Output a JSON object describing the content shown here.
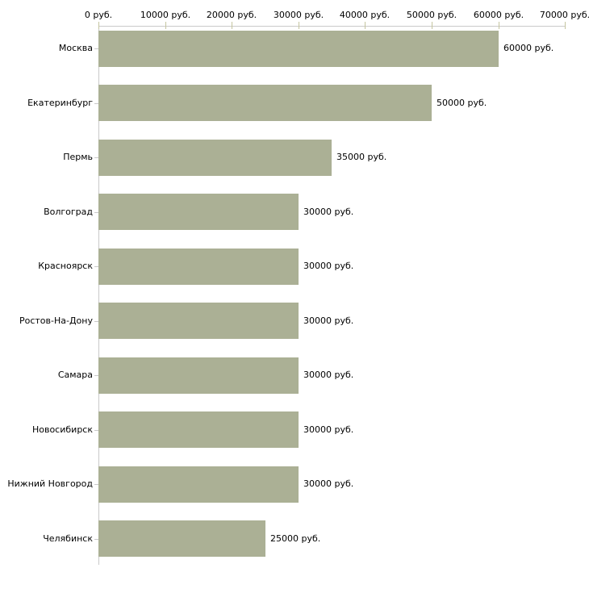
{
  "chart_data": {
    "type": "bar",
    "orientation": "horizontal",
    "title": "",
    "xlabel": "",
    "ylabel": "",
    "legend": "none",
    "grid": "off",
    "categories": [
      "Москва",
      "Екатеринбург",
      "Пермь",
      "Волгоград",
      "Красноярск",
      "Ростов-На-Дону",
      "Самара",
      "Новосибирск",
      "Нижний Новгород",
      "Челябинск"
    ],
    "values": [
      60000,
      50000,
      35000,
      30000,
      30000,
      30000,
      30000,
      30000,
      30000,
      25000
    ],
    "value_labels": [
      "60000 руб.",
      "50000 руб.",
      "35000 руб.",
      "30000 руб.",
      "30000 руб.",
      "30000 руб.",
      "30000 руб.",
      "30000 руб.",
      "30000 руб.",
      "25000 руб."
    ],
    "x_tick_labels": [
      "0 руб.",
      "10000 руб.",
      "20000 руб.",
      "30000 руб.",
      "40000 руб.",
      "50000 руб.",
      "60000 руб.",
      "70000 руб."
    ],
    "x_tick_values": [
      0,
      10000,
      20000,
      30000,
      40000,
      50000,
      60000,
      70000
    ],
    "xlim": [
      0,
      70000
    ],
    "unit_suffix": " руб.",
    "colors": {
      "bar": "#abb095",
      "axis_line": "#c9c9c9",
      "axis_tick": "#c5c5a0",
      "label_text": "#000000",
      "background": "#ffffff"
    }
  }
}
